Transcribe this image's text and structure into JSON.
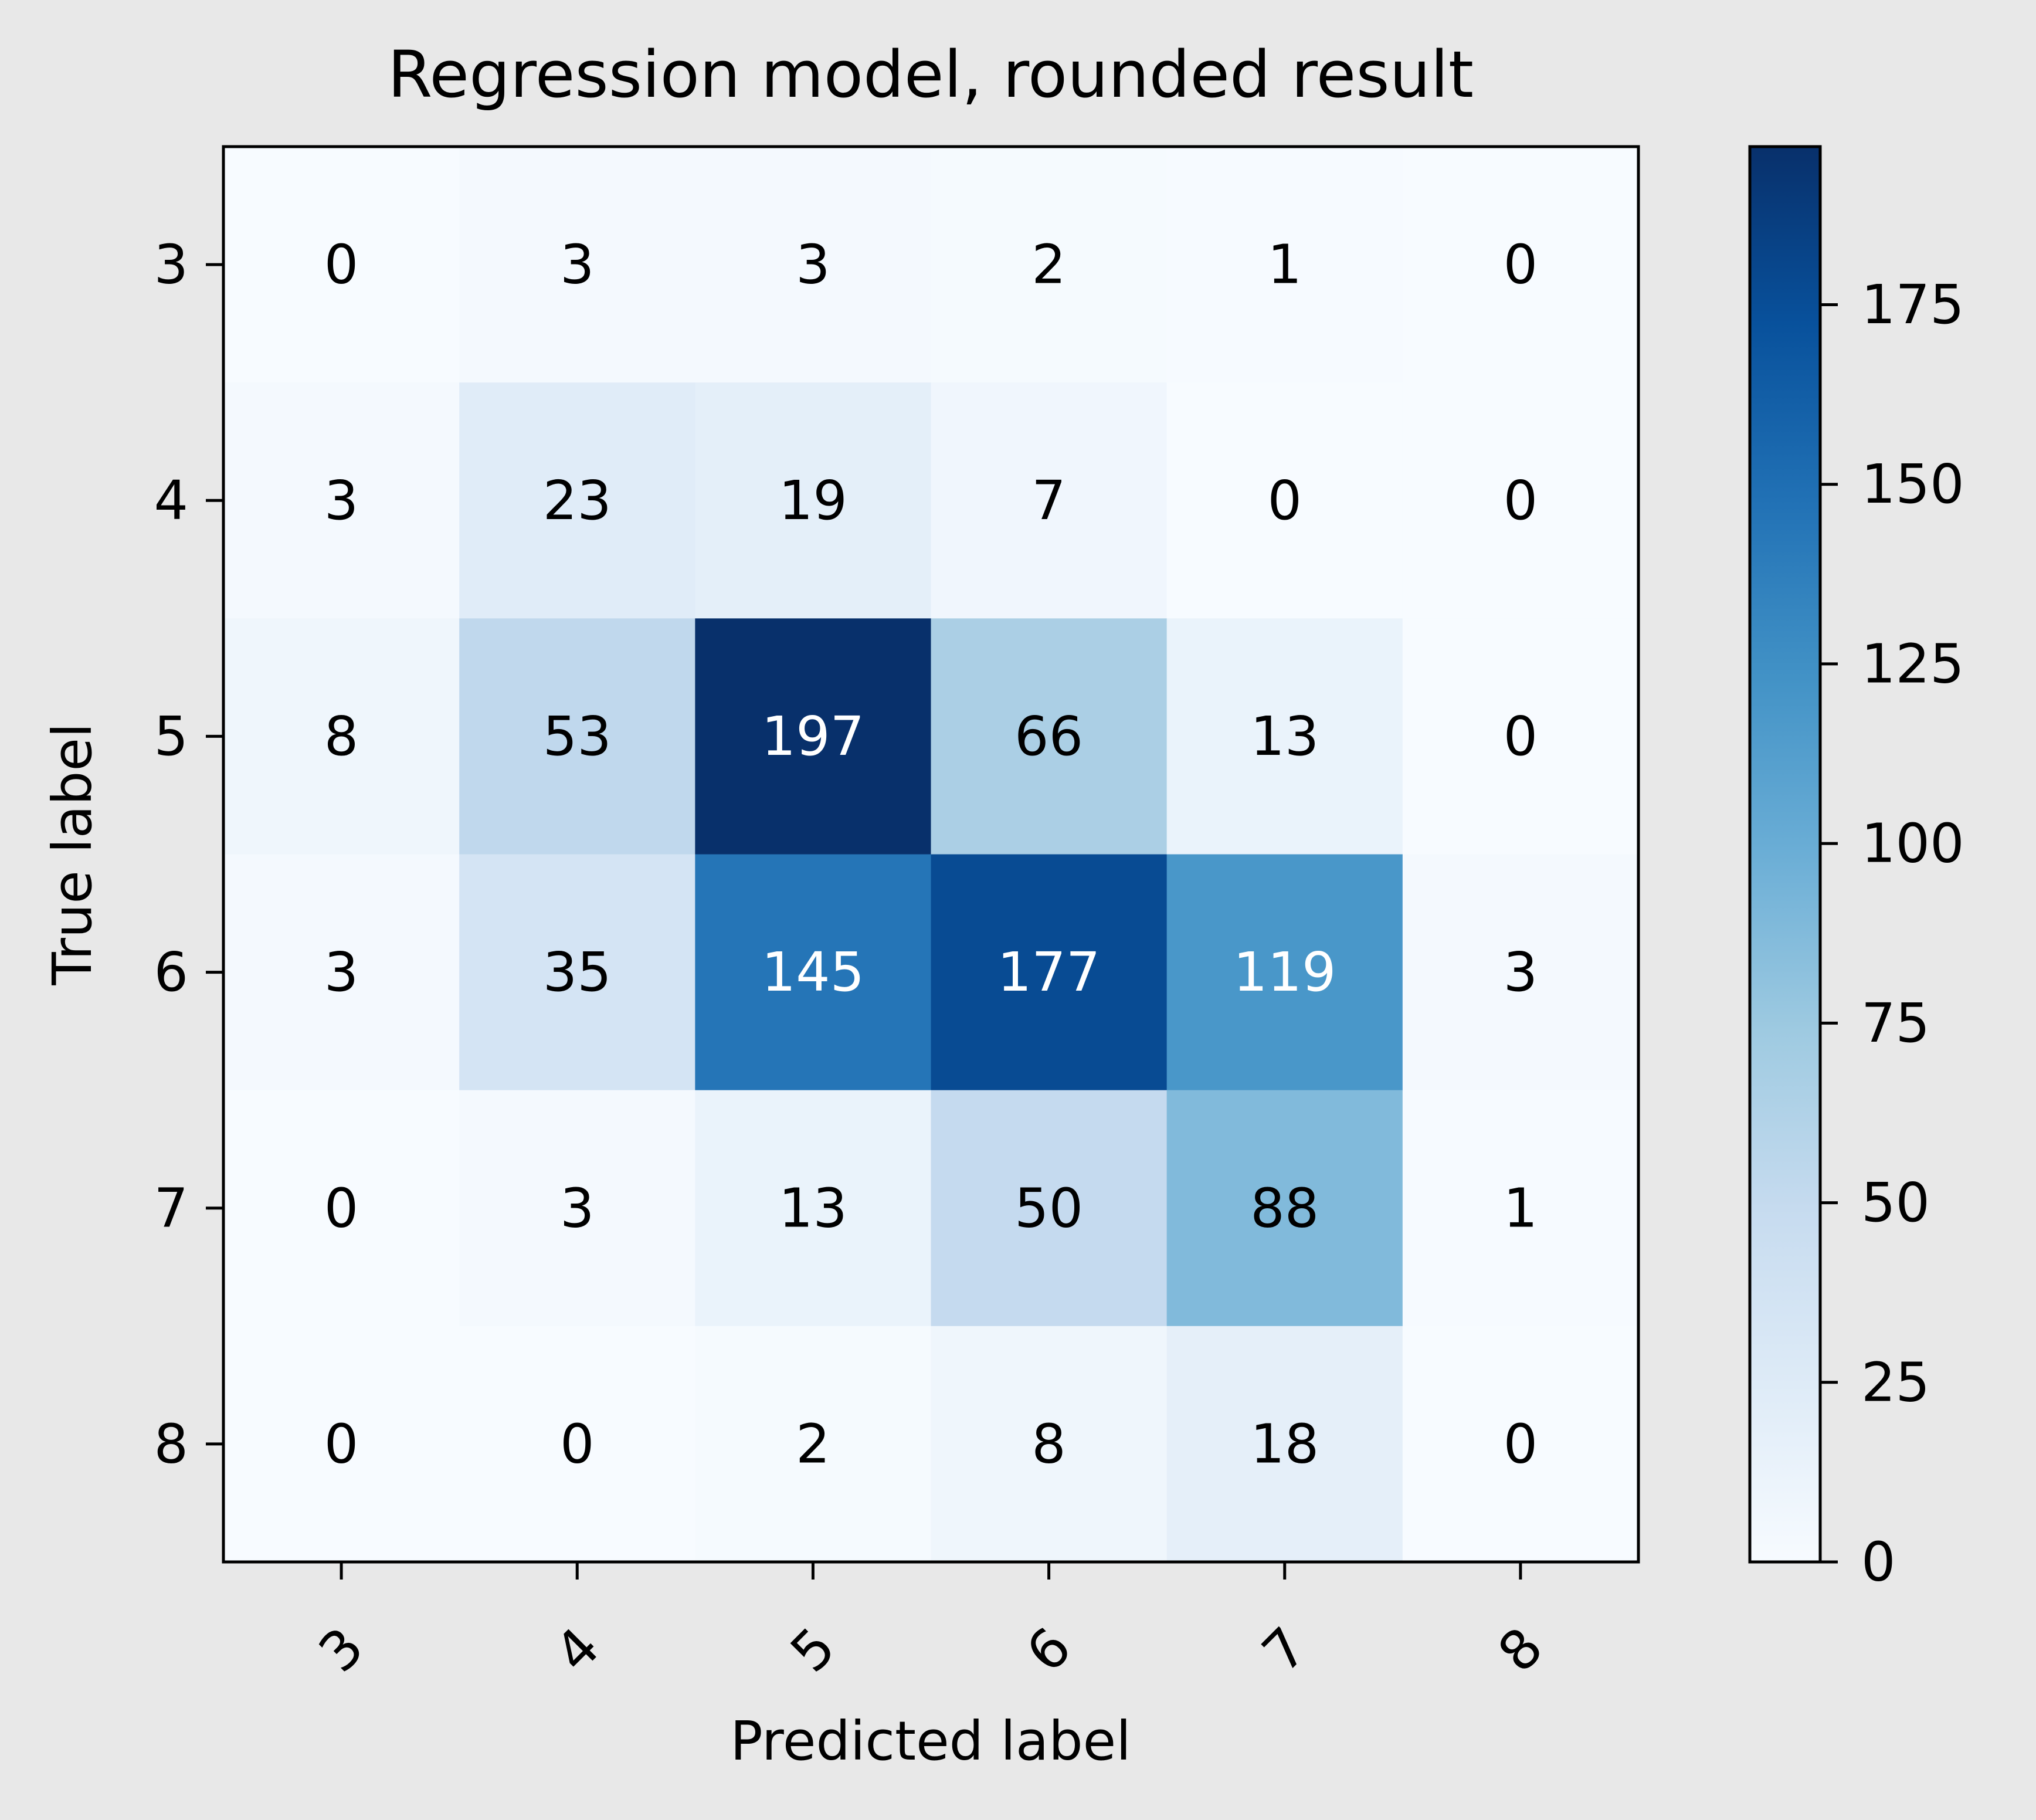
{
  "chart_data": {
    "type": "heatmap",
    "title": "Regression model, rounded result",
    "xlabel": "Predicted label",
    "ylabel": "True label",
    "x_categories": [
      "3",
      "4",
      "5",
      "6",
      "7",
      "8"
    ],
    "y_categories": [
      "3",
      "4",
      "5",
      "6",
      "7",
      "8"
    ],
    "values": [
      [
        0,
        3,
        3,
        2,
        1,
        0
      ],
      [
        3,
        23,
        19,
        7,
        0,
        0
      ],
      [
        8,
        53,
        197,
        66,
        13,
        0
      ],
      [
        3,
        35,
        145,
        177,
        119,
        3
      ],
      [
        0,
        3,
        13,
        50,
        88,
        1
      ],
      [
        0,
        0,
        2,
        8,
        18,
        0
      ]
    ],
    "colormap": "Blues",
    "vmin": 0,
    "vmax": 197,
    "colorbar_ticks": [
      0,
      25,
      50,
      75,
      100,
      125,
      150,
      175
    ],
    "colorbar_tick_labels": [
      "0",
      "25",
      "50",
      "75",
      "100",
      "125",
      "150",
      "175"
    ],
    "x_tick_rotation_deg": 45,
    "colors": {
      "background": "#e8e8e8",
      "plot_background": "#ffffff",
      "axis": "#000000",
      "text_dark": "#000000",
      "text_light": "#ffffff",
      "cmap_stops": [
        "#f7fbff",
        "#deebf7",
        "#c6dbef",
        "#9ecae1",
        "#6baed6",
        "#4292c6",
        "#2171b5",
        "#08519c",
        "#08306b"
      ]
    }
  }
}
